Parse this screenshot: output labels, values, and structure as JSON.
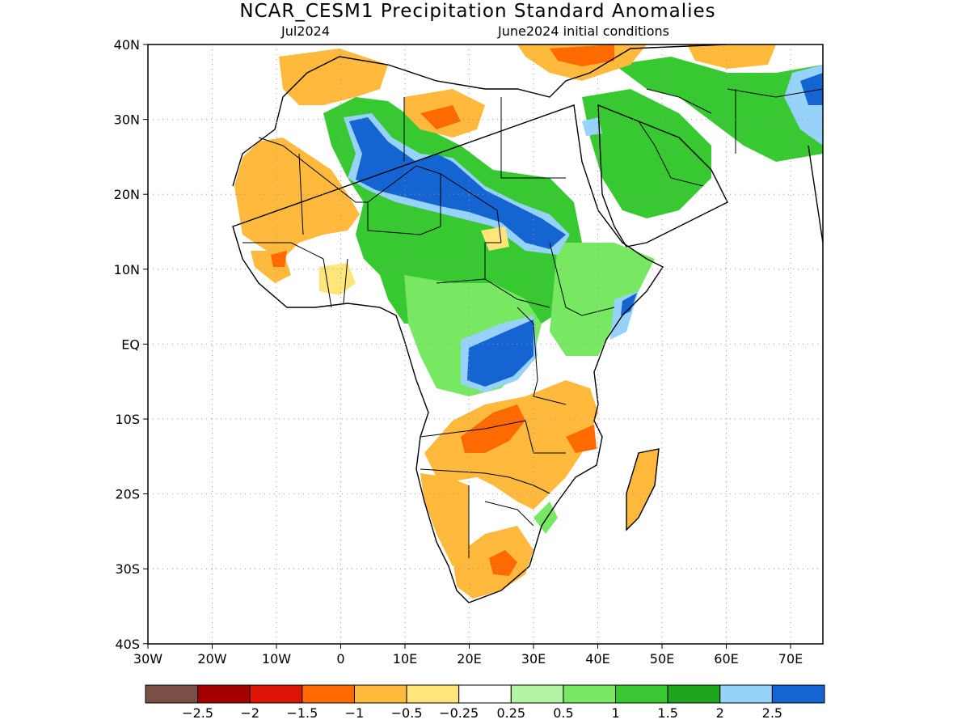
{
  "title": "NCAR_CESM1 Precipitation Standard Anomalies",
  "subtitle_left": "Jul2024",
  "subtitle_right": "June2024 initial conditions",
  "lat_labels": [
    "40N",
    "30N",
    "20N",
    "10N",
    "EQ",
    "10S",
    "20S",
    "30S",
    "40S"
  ],
  "lon_labels": [
    "30W",
    "20W",
    "10W",
    "0",
    "10E",
    "20E",
    "30E",
    "40E",
    "50E",
    "60E",
    "70E"
  ],
  "colorbar": {
    "colors": [
      "#7a4f45",
      "#a50000",
      "#de1405",
      "#ff6a00",
      "#ffb93c",
      "#ffe57a",
      "#ffffff",
      "#b4f5a5",
      "#78e862",
      "#37c832",
      "#1ea51e",
      "#96d2fa",
      "#1464d2"
    ],
    "labels": [
      "−2.5",
      "−2",
      "−1.5",
      "−1",
      "−0.5",
      "−0.25",
      "0.25",
      "0.5",
      "1",
      "1.5",
      "2",
      "2.5"
    ]
  }
}
